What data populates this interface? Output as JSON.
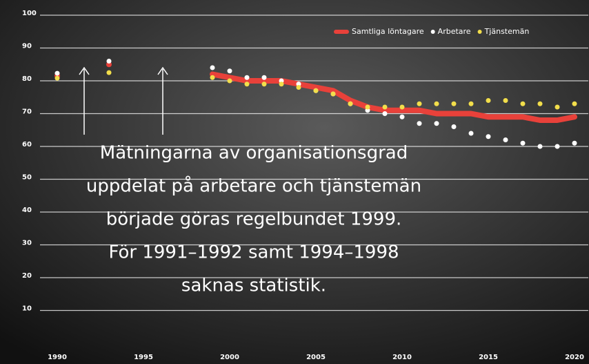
{
  "chart_data": {
    "type": "line",
    "x": [
      1990,
      1991,
      1992,
      1993,
      1994,
      1995,
      1996,
      1997,
      1998,
      1999,
      2000,
      2001,
      2002,
      2003,
      2004,
      2005,
      2006,
      2007,
      2008,
      2009,
      2010,
      2011,
      2012,
      2013,
      2014,
      2015,
      2016,
      2017,
      2018,
      2019,
      2020
    ],
    "series": [
      {
        "name": "Samtliga löntagare",
        "color": "#e8413a",
        "style": "line",
        "values": [
          81.5,
          null,
          null,
          85,
          null,
          null,
          null,
          null,
          null,
          82,
          81,
          80,
          80,
          80,
          79,
          78,
          77,
          74,
          72,
          71,
          71,
          71,
          70,
          70,
          70,
          69,
          69,
          69,
          68,
          68,
          69
        ]
      },
      {
        "name": "Arbetare",
        "color": "#ffffff",
        "style": "dots",
        "values": [
          82.3,
          null,
          null,
          86,
          null,
          null,
          null,
          null,
          null,
          84,
          83,
          81,
          81,
          80,
          79,
          77,
          76,
          73,
          71,
          70,
          69,
          67,
          67,
          66,
          64,
          63,
          62,
          61,
          60,
          60,
          61
        ]
      },
      {
        "name": "Tjänstemän",
        "color": "#f2de4b",
        "style": "dots",
        "values": [
          80.8,
          null,
          null,
          82.5,
          null,
          null,
          null,
          null,
          null,
          81,
          80,
          79,
          79,
          79,
          78,
          77,
          76,
          73,
          72,
          72,
          72,
          73,
          73,
          73,
          73,
          74,
          74,
          73,
          73,
          72,
          73
        ]
      }
    ],
    "xlim": [
      1989,
      2020.8
    ],
    "xticks": [
      1990,
      1995,
      2000,
      2005,
      2010,
      2015,
      2020
    ],
    "ylim": [
      0,
      100
    ],
    "yticks": [
      10,
      20,
      30,
      40,
      50,
      60,
      70,
      80,
      90,
      100
    ],
    "grid": true,
    "legend": "top-right",
    "annotation": [
      "Mätningarna av organisationsgrad",
      "uppdelat på arbetare och tjänstemän",
      "började göras regelbundet 1999.",
      "För 1991–1992 samt 1994–1998",
      "saknas statistik."
    ]
  }
}
